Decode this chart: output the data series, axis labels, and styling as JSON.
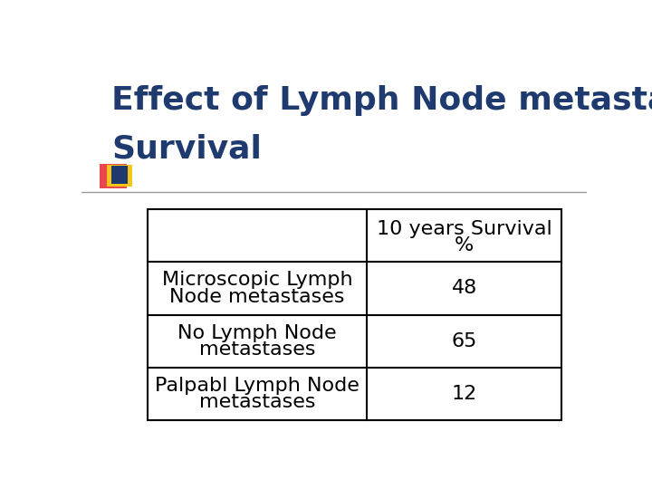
{
  "title_line1": "Effect of Lymph Node metastases on",
  "title_line2": "Survival",
  "title_color": "#1F3A6E",
  "background_color": "#FFFFFF",
  "table_header_col2_line1": "10 years Survival",
  "table_header_col2_line2": "%",
  "table_rows": [
    [
      "Microscopic Lymph\nNode metastases",
      "48"
    ],
    [
      "No Lymph Node\nmetastases",
      "65"
    ],
    [
      "Palpabl Lymph Node\nmetastases",
      "12"
    ]
  ],
  "table_font_size": 16,
  "title_font_size": 26,
  "decorator_red": "#E8474C",
  "decorator_yellow": "#F5C518",
  "decorator_blue": "#1F3A6E",
  "line_color": "#999999"
}
